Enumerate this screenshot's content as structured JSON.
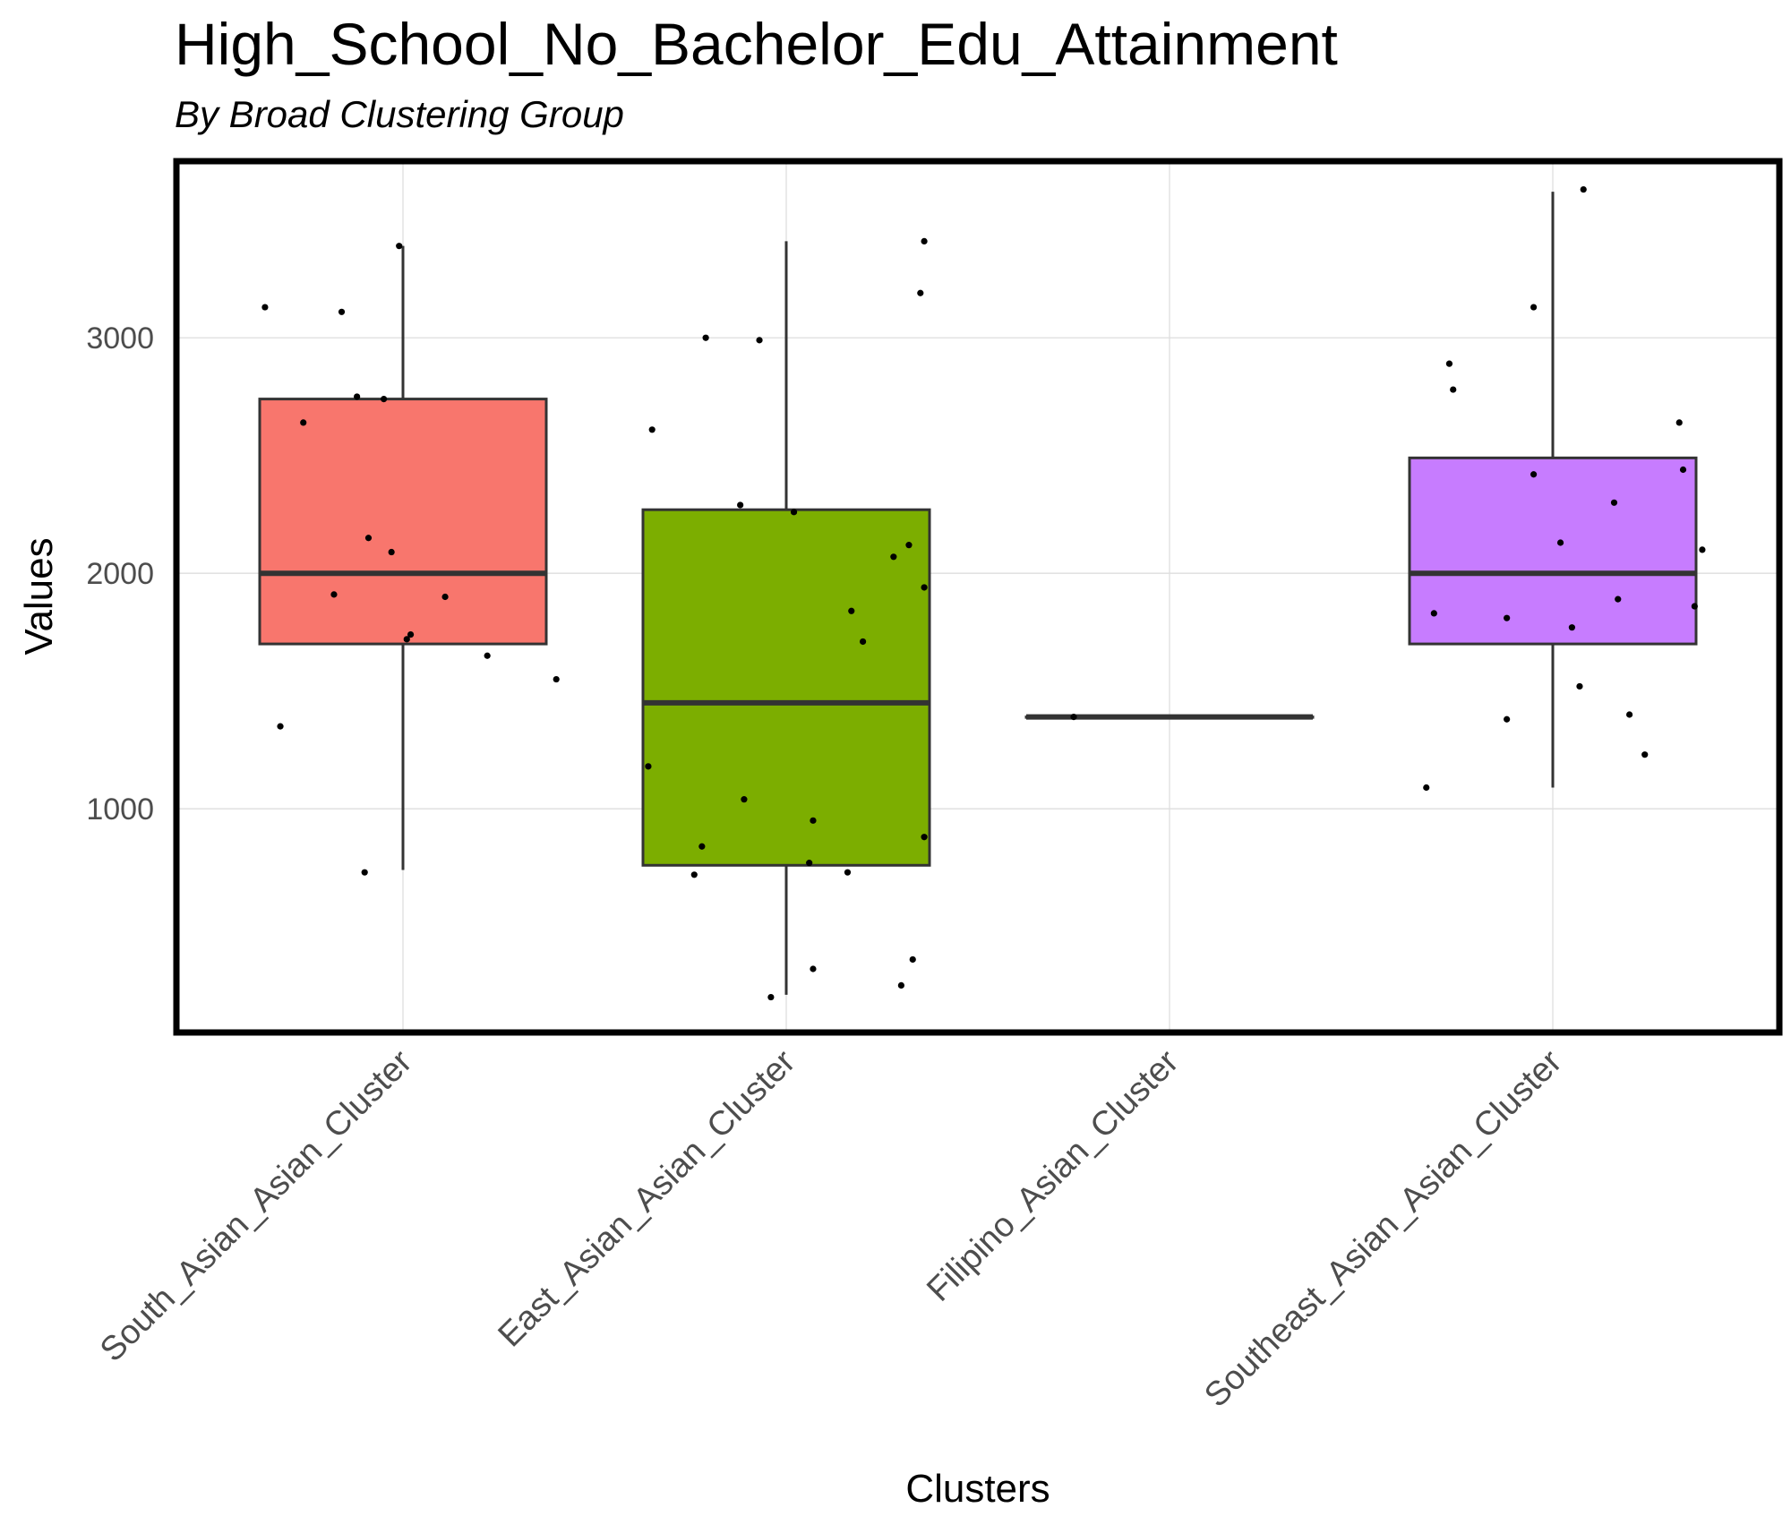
{
  "chart_data": {
    "type": "box",
    "title": "High_School_No_Bachelor_Edu_Attainment",
    "subtitle": "By Broad Clustering Group",
    "xlabel": "Clusters",
    "ylabel": "Values",
    "ylim": [
      50,
      3750
    ],
    "y_ticks": [
      1000,
      2000,
      3000
    ],
    "grid": true,
    "legend": "none",
    "categories": [
      "South_Asian_Asian_Cluster",
      "East_Asian_Asian_Cluster",
      "Filipino_Asian_Cluster",
      "Southeast_Asian_Asian_Cluster"
    ],
    "colors": [
      "#f8766d",
      "#7cae00",
      "#00bfc4",
      "#c77cff"
    ],
    "boxes": [
      {
        "category": "South_Asian_Asian_Cluster",
        "whisker_low": 740,
        "q1": 1700,
        "median": 2000,
        "q3": 2740,
        "whisker_high": 3390
      },
      {
        "category": "East_Asian_Asian_Cluster",
        "whisker_low": 210,
        "q1": 760,
        "median": 1450,
        "q3": 2270,
        "whisker_high": 3410
      },
      {
        "category": "Filipino_Asian_Cluster",
        "whisker_low": 1390,
        "q1": 1390,
        "median": 1390,
        "q3": 1390,
        "whisker_high": 1390
      },
      {
        "category": "Southeast_Asian_Asian_Cluster",
        "whisker_low": 1090,
        "q1": 1700,
        "median": 2000,
        "q3": 2490,
        "whisker_high": 3620
      }
    ],
    "points": [
      [
        {
          "x": -0.36,
          "y": 3130
        },
        {
          "x": -0.16,
          "y": 3110
        },
        {
          "x": -0.26,
          "y": 2640
        },
        {
          "x": -0.12,
          "y": 2750
        },
        {
          "x": -0.05,
          "y": 2740
        },
        {
          "x": -0.09,
          "y": 2150
        },
        {
          "x": -0.03,
          "y": 2090
        },
        {
          "x": -0.18,
          "y": 1910
        },
        {
          "x": 0.11,
          "y": 1900
        },
        {
          "x": 0.02,
          "y": 1740
        },
        {
          "x": 0.01,
          "y": 1720
        },
        {
          "x": 0.22,
          "y": 1650
        },
        {
          "x": 0.4,
          "y": 1550
        },
        {
          "x": -0.32,
          "y": 1350
        },
        {
          "x": -0.1,
          "y": 730
        },
        {
          "x": -0.01,
          "y": 3390
        }
      ],
      [
        {
          "x": 0.36,
          "y": 3410
        },
        {
          "x": 0.35,
          "y": 3190
        },
        {
          "x": -0.21,
          "y": 3000
        },
        {
          "x": -0.07,
          "y": 2990
        },
        {
          "x": -0.35,
          "y": 2610
        },
        {
          "x": -0.12,
          "y": 2290
        },
        {
          "x": 0.02,
          "y": 2260
        },
        {
          "x": 0.32,
          "y": 2120
        },
        {
          "x": 0.28,
          "y": 2070
        },
        {
          "x": 0.36,
          "y": 1940
        },
        {
          "x": 0.17,
          "y": 1840
        },
        {
          "x": 0.2,
          "y": 1710
        },
        {
          "x": -0.36,
          "y": 1180
        },
        {
          "x": -0.11,
          "y": 1040
        },
        {
          "x": 0.07,
          "y": 950
        },
        {
          "x": 0.36,
          "y": 880
        },
        {
          "x": -0.22,
          "y": 840
        },
        {
          "x": 0.06,
          "y": 770
        },
        {
          "x": -0.24,
          "y": 720
        },
        {
          "x": 0.16,
          "y": 730
        },
        {
          "x": 0.33,
          "y": 360
        },
        {
          "x": 0.07,
          "y": 320
        },
        {
          "x": 0.3,
          "y": 250
        },
        {
          "x": -0.04,
          "y": 200
        }
      ],
      [
        {
          "x": -0.25,
          "y": 1390
        }
      ],
      [
        {
          "x": 0.08,
          "y": 3630
        },
        {
          "x": -0.05,
          "y": 3130
        },
        {
          "x": -0.27,
          "y": 2890
        },
        {
          "x": -0.26,
          "y": 2780
        },
        {
          "x": 0.33,
          "y": 2640
        },
        {
          "x": 0.34,
          "y": 2440
        },
        {
          "x": -0.05,
          "y": 2420
        },
        {
          "x": 0.16,
          "y": 2300
        },
        {
          "x": 0.02,
          "y": 2130
        },
        {
          "x": 0.39,
          "y": 2100
        },
        {
          "x": 0.17,
          "y": 1890
        },
        {
          "x": 0.37,
          "y": 1860
        },
        {
          "x": -0.31,
          "y": 1830
        },
        {
          "x": -0.12,
          "y": 1810
        },
        {
          "x": 0.05,
          "y": 1770
        },
        {
          "x": 0.07,
          "y": 1520
        },
        {
          "x": 0.2,
          "y": 1400
        },
        {
          "x": -0.12,
          "y": 1380
        },
        {
          "x": 0.24,
          "y": 1230
        },
        {
          "x": -0.33,
          "y": 1090
        }
      ]
    ]
  }
}
